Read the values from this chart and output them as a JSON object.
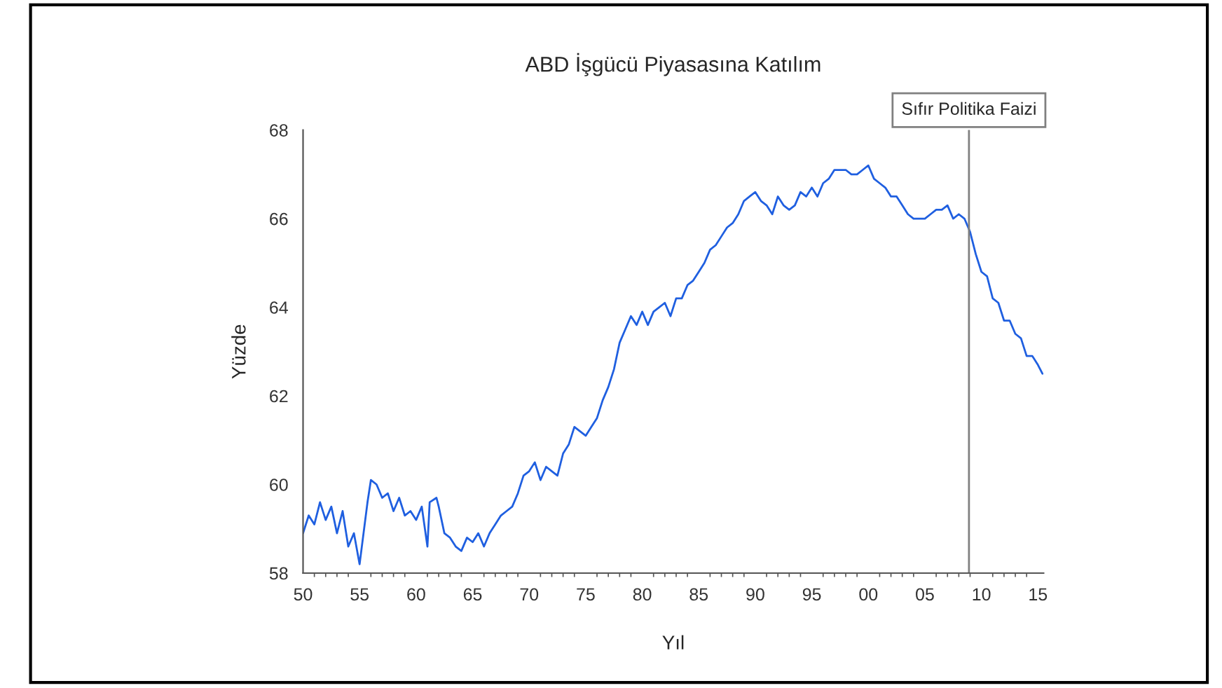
{
  "chart_data": {
    "type": "line",
    "title": "ABD İşgücü Piyasasına Katılım",
    "xlabel": "Yıl",
    "ylabel": "Yüzde",
    "series": [
      {
        "color": "#1f5fe0",
        "x": [
          1950,
          1950.5,
          1951,
          1951.5,
          1952,
          1952.5,
          1953,
          1953.5,
          1954,
          1954.5,
          1955,
          1955.3,
          1955.7,
          1956,
          1956.5,
          1957,
          1957.5,
          1958,
          1958.5,
          1959,
          1959.5,
          1960,
          1960.5,
          1961,
          1961.2,
          1961.8,
          1962,
          1962.5,
          1963,
          1963.5,
          1964,
          1964.5,
          1965,
          1965.5,
          1966,
          1966.5,
          1967,
          1967.5,
          1968,
          1968.5,
          1969,
          1969.5,
          1970,
          1970.5,
          1971,
          1971.5,
          1972,
          1972.5,
          1973,
          1973.5,
          1974,
          1974.5,
          1975,
          1975.5,
          1976,
          1976.5,
          1977,
          1977.5,
          1978,
          1978.5,
          1979,
          1979.5,
          1980,
          1980.5,
          1981,
          1981.5,
          1982,
          1982.5,
          1983,
          1983.5,
          1984,
          1984.5,
          1985,
          1985.5,
          1986,
          1986.5,
          1987,
          1987.5,
          1988,
          1988.5,
          1989,
          1989.5,
          1990,
          1990.5,
          1991,
          1991.5,
          1992,
          1992.5,
          1993,
          1993.5,
          1994,
          1994.5,
          1995,
          1995.5,
          1996,
          1996.5,
          1997,
          1997.5,
          1998,
          1998.5,
          1999,
          1999.5,
          2000,
          2000.5,
          2001,
          2001.5,
          2002,
          2002.5,
          2003,
          2003.5,
          2004,
          2004.5,
          2005,
          2005.5,
          2006,
          2006.5,
          2007,
          2007.5,
          2008,
          2008.5,
          2009,
          2009.5,
          2010,
          2010.5,
          2011,
          2011.5,
          2012,
          2012.5,
          2013,
          2013.5,
          2014,
          2014.5,
          2015,
          2015.4
        ],
        "values": [
          58.9,
          59.3,
          59.1,
          59.6,
          59.2,
          59.5,
          58.9,
          59.4,
          58.6,
          58.9,
          58.2,
          58.8,
          59.6,
          60.1,
          60.0,
          59.7,
          59.8,
          59.4,
          59.7,
          59.3,
          59.4,
          59.2,
          59.5,
          58.6,
          59.6,
          59.7,
          59.5,
          58.9,
          58.8,
          58.6,
          58.5,
          58.8,
          58.7,
          58.9,
          58.6,
          58.9,
          59.1,
          59.3,
          59.4,
          59.5,
          59.8,
          60.2,
          60.3,
          60.5,
          60.1,
          60.4,
          60.3,
          60.2,
          60.7,
          60.9,
          61.3,
          61.2,
          61.1,
          61.3,
          61.5,
          61.9,
          62.2,
          62.6,
          63.2,
          63.5,
          63.8,
          63.6,
          63.9,
          63.6,
          63.9,
          64.0,
          64.1,
          63.8,
          64.2,
          64.2,
          64.5,
          64.6,
          64.8,
          65.0,
          65.3,
          65.4,
          65.6,
          65.8,
          65.9,
          66.1,
          66.4,
          66.5,
          66.6,
          66.4,
          66.3,
          66.1,
          66.5,
          66.3,
          66.2,
          66.3,
          66.6,
          66.5,
          66.7,
          66.5,
          66.8,
          66.9,
          67.1,
          67.1,
          67.1,
          67.0,
          67.0,
          67.1,
          67.2,
          66.9,
          66.8,
          66.7,
          66.5,
          66.5,
          66.3,
          66.1,
          66.0,
          66.0,
          66.0,
          66.1,
          66.2,
          66.2,
          66.3,
          66.0,
          66.1,
          66.0,
          65.7,
          65.2,
          64.8,
          64.7,
          64.2,
          64.1,
          63.7,
          63.7,
          63.4,
          63.3,
          62.9,
          62.9,
          62.7,
          62.5
        ]
      }
    ],
    "xlim": [
      1950,
      2015.5
    ],
    "xticks": [
      {
        "value": 1950,
        "label": "50"
      },
      {
        "value": 1955,
        "label": "55"
      },
      {
        "value": 1960,
        "label": "60"
      },
      {
        "value": 1965,
        "label": "65"
      },
      {
        "value": 1970,
        "label": "70"
      },
      {
        "value": 1975,
        "label": "75"
      },
      {
        "value": 1980,
        "label": "80"
      },
      {
        "value": 1985,
        "label": "85"
      },
      {
        "value": 1990,
        "label": "90"
      },
      {
        "value": 1995,
        "label": "95"
      },
      {
        "value": 2000,
        "label": "00"
      },
      {
        "value": 2005,
        "label": "05"
      },
      {
        "value": 2010,
        "label": "10"
      },
      {
        "value": 2015,
        "label": "15"
      }
    ],
    "ylim": [
      58,
      68
    ],
    "yticks": [
      58,
      60,
      62,
      64,
      66,
      68
    ],
    "ref_lines": [
      {
        "axis": "x",
        "value": 2008.9,
        "label": "Sıfır Politika Faizi",
        "color": "#808080"
      }
    ],
    "grid": false,
    "legend": false,
    "marker": "none",
    "line_style": "solid"
  }
}
